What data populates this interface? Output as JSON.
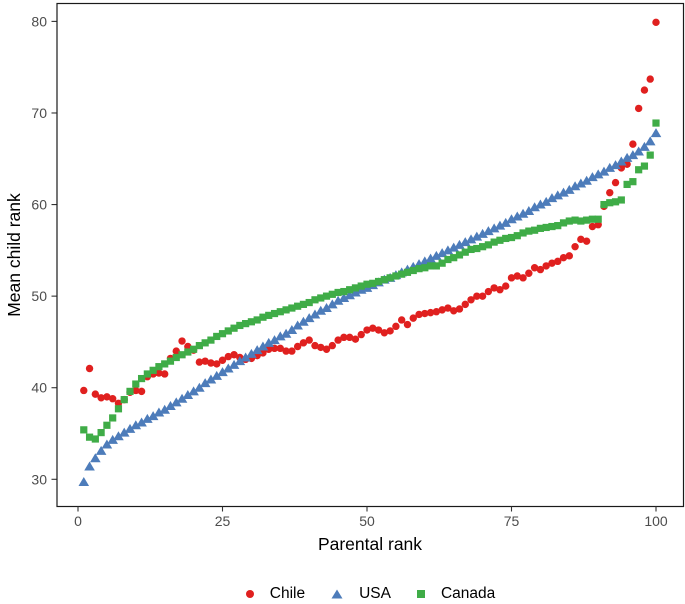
{
  "figure": {
    "title": "",
    "background": "#ffffff"
  },
  "axes": {
    "x_title": "Parental rank",
    "y_title": "Mean child rank",
    "x_tick_labels": [
      "0",
      "25",
      "50",
      "75",
      "100"
    ],
    "y_tick_labels": [
      "30",
      "40",
      "50",
      "60",
      "70",
      "80"
    ],
    "tick_label_color": "#4d4d4d",
    "axis_line_color": "#1a1a1a"
  },
  "legend": {
    "items": [
      {
        "label": "Chile",
        "marker": "circle",
        "color": "#e0201f"
      },
      {
        "label": "USA",
        "marker": "triangle",
        "color": "#4d7cba"
      },
      {
        "label": "Canada",
        "marker": "square",
        "color": "#3fac47"
      }
    ]
  },
  "chart_data": {
    "type": "scatter",
    "title": "",
    "xlabel": "Parental rank",
    "ylabel": "Mean child rank",
    "xlim": [
      -3.6,
      104.8
    ],
    "ylim": [
      27,
      82
    ],
    "x_ticks": [
      0,
      25,
      50,
      75,
      100
    ],
    "y_ticks": [
      30,
      40,
      50,
      60,
      70,
      80
    ],
    "grid": false,
    "legend_position": "bottom",
    "x_ranks": {
      "from": 1,
      "to": 100,
      "step": 1
    },
    "series": [
      {
        "name": "Chile",
        "marker": "circle",
        "color": "#e0201f",
        "y": [
          39.7,
          42.1,
          39.3,
          38.9,
          39.0,
          38.8,
          38.3,
          38.7,
          39.5,
          39.7,
          39.6,
          41.2,
          41.5,
          41.6,
          41.5,
          43.2,
          44.0,
          45.1,
          44.5,
          44.1,
          42.8,
          42.9,
          42.7,
          42.6,
          43.0,
          43.4,
          43.6,
          43.3,
          43.1,
          43.2,
          43.5,
          43.8,
          44.2,
          44.3,
          44.3,
          44.0,
          44.0,
          44.5,
          44.9,
          45.2,
          44.6,
          44.4,
          44.2,
          44.6,
          45.2,
          45.5,
          45.5,
          45.3,
          45.8,
          46.3,
          46.5,
          46.3,
          46.0,
          46.2,
          46.7,
          47.4,
          46.9,
          47.6,
          48.0,
          48.1,
          48.2,
          48.3,
          48.5,
          48.7,
          48.4,
          48.6,
          49.1,
          49.6,
          50.0,
          50.0,
          50.5,
          50.9,
          50.7,
          51.1,
          52.0,
          52.2,
          52.0,
          52.5,
          53.1,
          52.9,
          53.3,
          53.6,
          53.8,
          54.2,
          54.4,
          55.4,
          56.2,
          56.0,
          57.6,
          57.8,
          59.8,
          61.3,
          62.4,
          64.0,
          64.4,
          66.6,
          70.5,
          72.5,
          73.7,
          79.9
        ]
      },
      {
        "name": "USA",
        "marker": "triangle",
        "color": "#4d7cba",
        "y": [
          29.7,
          31.4,
          32.3,
          33.1,
          33.8,
          34.3,
          34.7,
          35.1,
          35.5,
          35.9,
          36.2,
          36.6,
          36.9,
          37.3,
          37.6,
          38.0,
          38.4,
          38.8,
          39.2,
          39.6,
          40.0,
          40.5,
          40.9,
          41.3,
          41.7,
          42.1,
          42.5,
          42.9,
          43.3,
          43.7,
          44.1,
          44.5,
          44.9,
          45.2,
          45.6,
          45.9,
          46.3,
          46.8,
          47.2,
          47.6,
          48.0,
          48.4,
          48.7,
          49.1,
          49.5,
          49.8,
          50.1,
          50.4,
          50.7,
          50.9,
          51.2,
          51.5,
          51.8,
          52.0,
          52.3,
          52.6,
          52.9,
          53.2,
          53.5,
          53.8,
          54.1,
          54.4,
          54.7,
          55.0,
          55.3,
          55.6,
          55.9,
          56.2,
          56.5,
          56.8,
          57.1,
          57.4,
          57.7,
          58.0,
          58.4,
          58.7,
          59.0,
          59.3,
          59.7,
          60.0,
          60.3,
          60.7,
          61.0,
          61.3,
          61.6,
          62.0,
          62.3,
          62.6,
          63.0,
          63.3,
          63.6,
          64.0,
          64.3,
          64.7,
          65.1,
          65.4,
          65.8,
          66.3,
          66.9,
          67.8
        ]
      },
      {
        "name": "Canada",
        "marker": "square",
        "color": "#3fac47",
        "y": [
          35.4,
          34.6,
          34.4,
          35.1,
          35.9,
          36.7,
          37.7,
          38.7,
          39.6,
          40.4,
          41.0,
          41.5,
          41.9,
          42.3,
          42.6,
          42.9,
          43.3,
          43.6,
          43.9,
          44.2,
          44.6,
          44.9,
          45.2,
          45.6,
          45.9,
          46.2,
          46.5,
          46.8,
          47.0,
          47.2,
          47.4,
          47.7,
          47.9,
          48.1,
          48.3,
          48.5,
          48.7,
          48.9,
          49.1,
          49.3,
          49.6,
          49.8,
          50.0,
          50.2,
          50.4,
          50.5,
          50.7,
          50.9,
          51.1,
          51.3,
          51.4,
          51.6,
          51.8,
          52.0,
          52.2,
          52.4,
          52.6,
          52.8,
          53.0,
          53.1,
          53.3,
          53.3,
          53.6,
          54.0,
          54.2,
          54.5,
          54.8,
          55.1,
          55.2,
          55.4,
          55.6,
          55.9,
          56.1,
          56.3,
          56.4,
          56.6,
          56.9,
          57.1,
          57.2,
          57.4,
          57.5,
          57.6,
          57.7,
          58.0,
          58.2,
          58.3,
          58.2,
          58.3,
          58.4,
          58.4,
          60.0,
          60.2,
          60.3,
          60.5,
          62.2,
          62.5,
          63.8,
          64.2,
          65.4,
          68.9
        ]
      }
    ]
  }
}
